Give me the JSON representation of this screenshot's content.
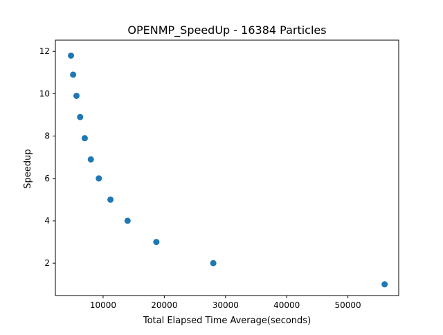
{
  "chart_data": {
    "type": "scatter",
    "title": "OPENMP_SpeedUp - 16384 Particles",
    "xlabel": "Total Elapsed Time Average(seconds)",
    "ylabel": "Speedup",
    "xlim": [
      2200,
      58300
    ],
    "ylim": [
      0.47,
      12.53
    ],
    "xticks": [
      10000,
      20000,
      30000,
      40000,
      50000
    ],
    "yticks": [
      2,
      4,
      6,
      8,
      10,
      12
    ],
    "grid": false,
    "legend": "none",
    "marker_color": "#1f77b4",
    "points": [
      {
        "x": 56000,
        "y": 1
      },
      {
        "x": 28000,
        "y": 2
      },
      {
        "x": 18700,
        "y": 3
      },
      {
        "x": 14000,
        "y": 4
      },
      {
        "x": 11200,
        "y": 5
      },
      {
        "x": 9300,
        "y": 6
      },
      {
        "x": 8000,
        "y": 6.9
      },
      {
        "x": 7000,
        "y": 7.9
      },
      {
        "x": 6250,
        "y": 8.9
      },
      {
        "x": 5650,
        "y": 9.9
      },
      {
        "x": 5100,
        "y": 10.9
      },
      {
        "x": 4750,
        "y": 11.8
      }
    ]
  }
}
